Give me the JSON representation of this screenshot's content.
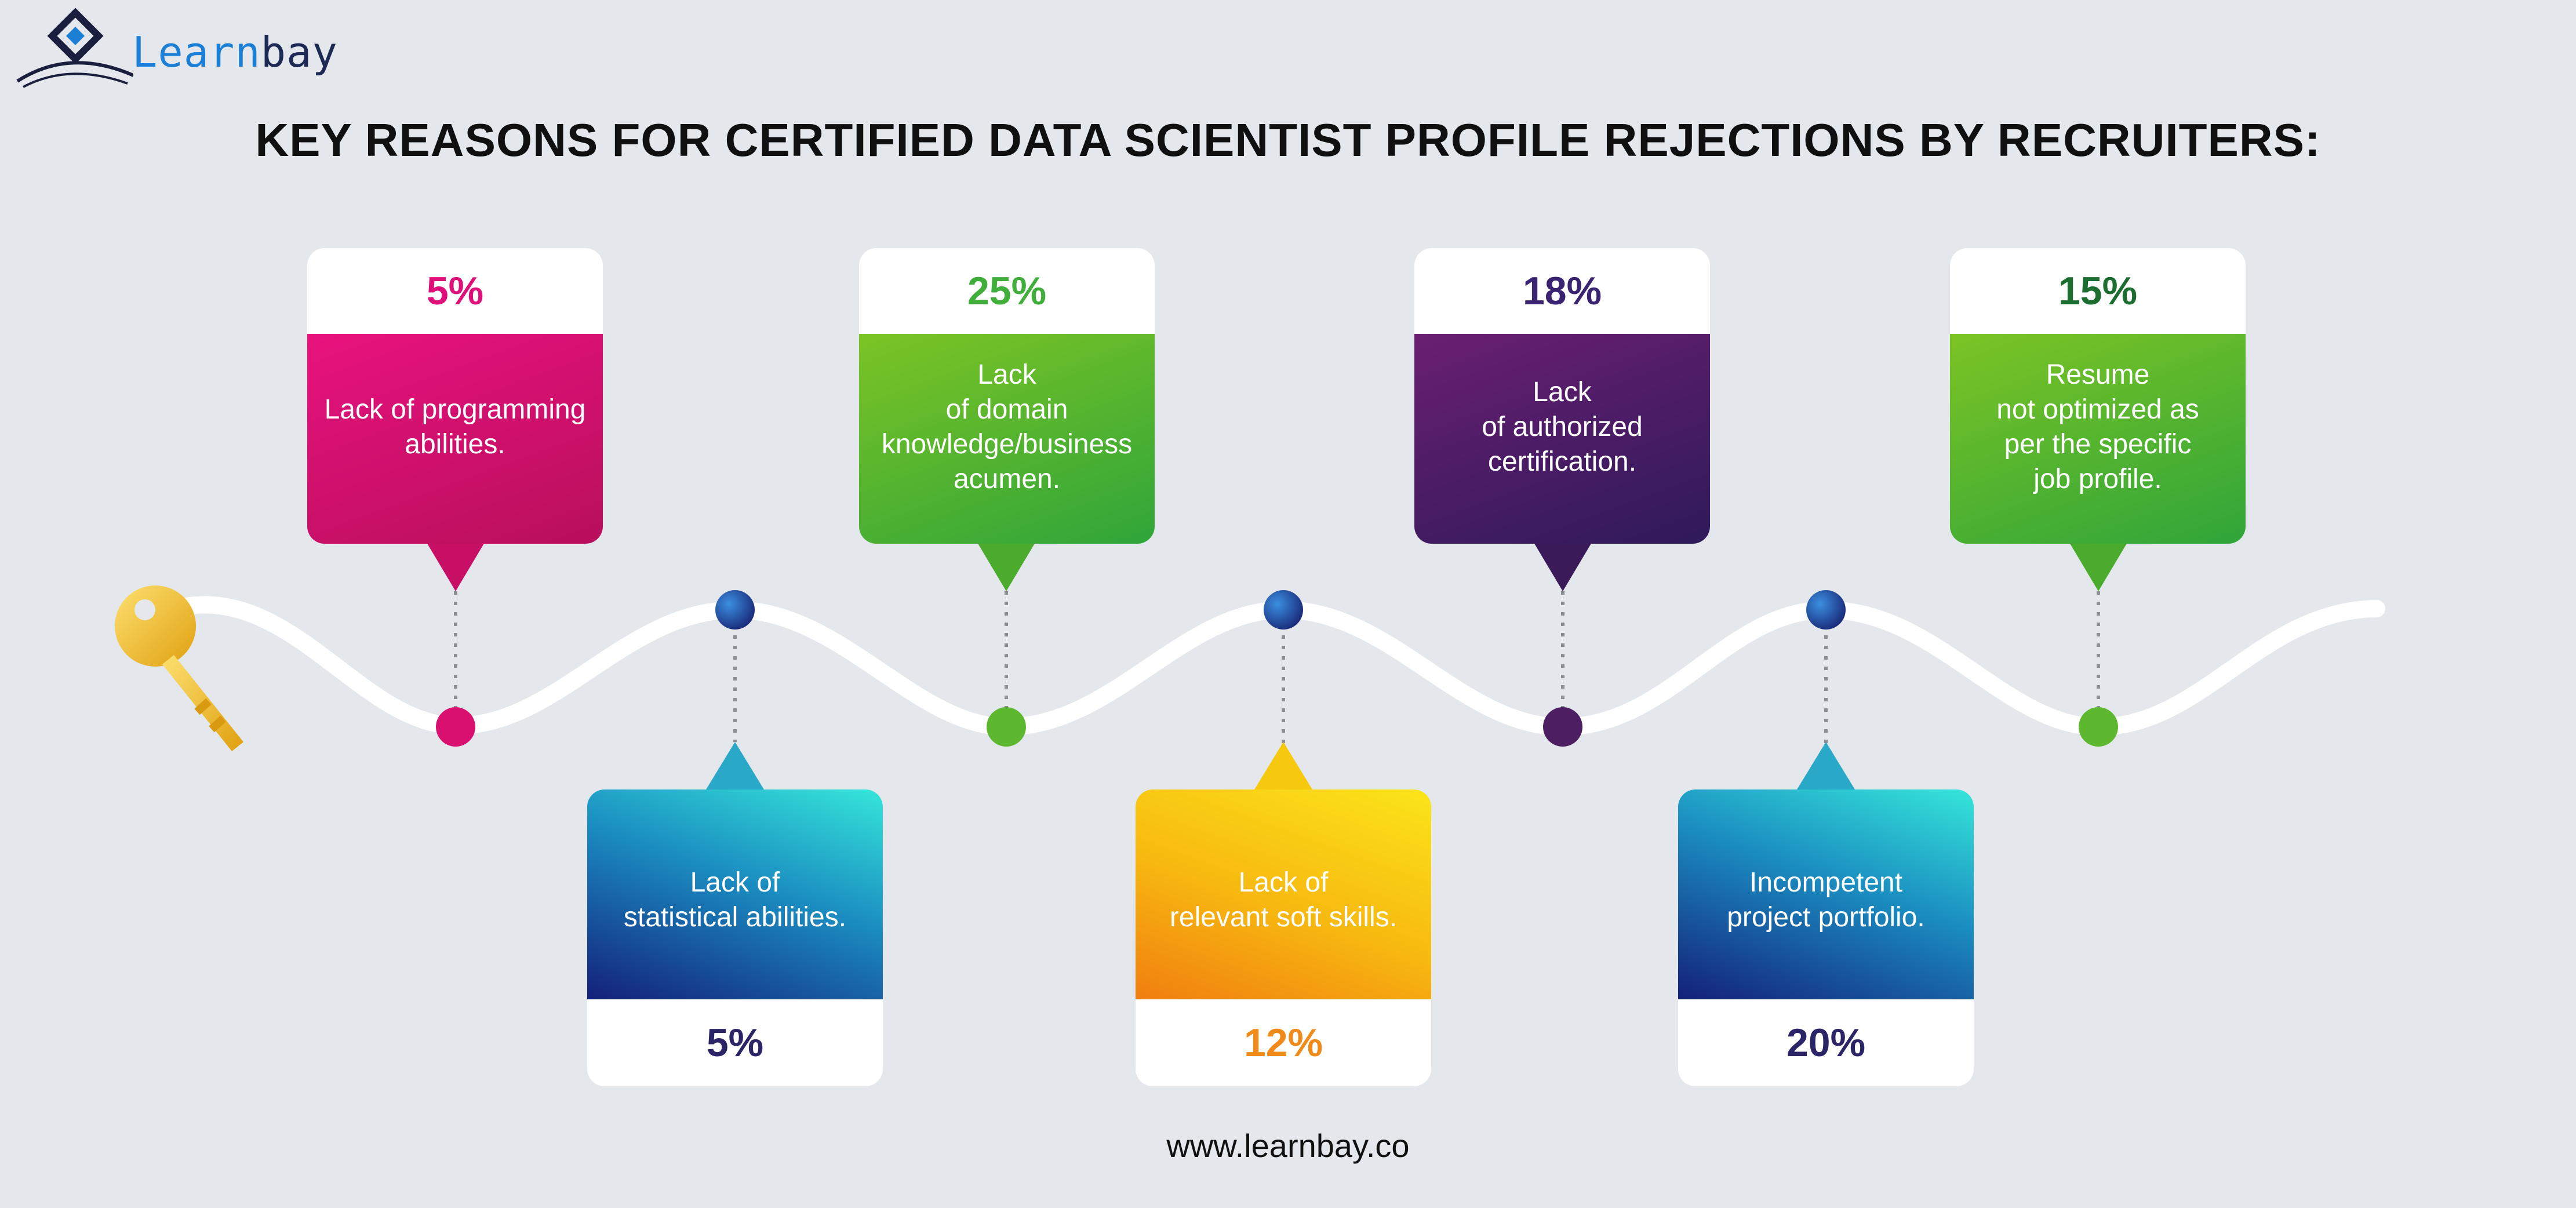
{
  "brand": {
    "name_highlight": "Learn",
    "name_rest": "bay"
  },
  "title": "KEY REASONS FOR CERTIFIED DATA SCIENTIST PROFILE REJECTIONS BY RECRUITERS:",
  "top_cards": [
    {
      "percent": "5%",
      "lines": [
        "Lack of programming",
        "abilities."
      ],
      "color": "#d90f78",
      "pct_color": "#e0107a"
    },
    {
      "percent": "25%",
      "lines": [
        "Lack",
        "of domain",
        "knowledge/business",
        "acumen."
      ],
      "color": "#54b22e",
      "pct_color": "#3fae3a"
    },
    {
      "percent": "18%",
      "lines": [
        "Lack",
        "of authorized",
        "certification."
      ],
      "color": "#4a1d63",
      "pct_color": "#3a2370"
    },
    {
      "percent": "15%",
      "lines": [
        "Resume",
        "not optimized as",
        "per the specific",
        "job profile."
      ],
      "color": "#5ab52c",
      "pct_color": "#1c6e30"
    }
  ],
  "bottom_cards": [
    {
      "percent": "5%",
      "lines": [
        "Lack of",
        "statistical abilities."
      ],
      "color": "#1c6fb0",
      "pct_color": "#2b2466"
    },
    {
      "percent": "12%",
      "lines": [
        "Lack of",
        "relevant soft skills."
      ],
      "color": "#f7bd10",
      "pct_color": "#f08a1a"
    },
    {
      "percent": "20%",
      "lines": [
        "Incompetent",
        "project portfolio."
      ],
      "color": "#1c6fb0",
      "pct_color": "#2b2466"
    }
  ],
  "footer": "www.learnbay.co"
}
